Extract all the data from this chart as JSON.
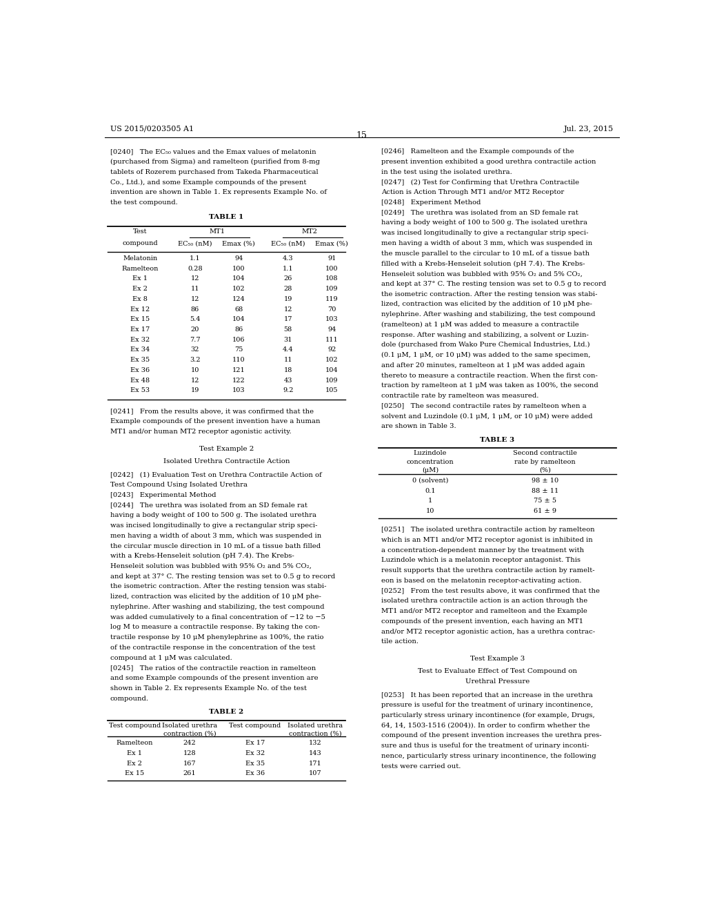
{
  "page_number": "15",
  "patent_number": "US 2015/0203505 A1",
  "patent_date": "Jul. 23, 2015",
  "background_color": "#ffffff",
  "text_color": "#000000",
  "table1_title": "TABLE 1",
  "table1_mt1": "MT1",
  "table1_mt2": "MT2",
  "table1_rows": [
    [
      "Melatonin",
      "1.1",
      "94",
      "4.3",
      "91"
    ],
    [
      "Ramelteon",
      "0.28",
      "100",
      "1.1",
      "100"
    ],
    [
      "Ex 1",
      "12",
      "104",
      "26",
      "108"
    ],
    [
      "Ex 2",
      "11",
      "102",
      "28",
      "109"
    ],
    [
      "Ex 8",
      "12",
      "124",
      "19",
      "119"
    ],
    [
      "Ex 12",
      "86",
      "68",
      "12",
      "70"
    ],
    [
      "Ex 15",
      "5.4",
      "104",
      "17",
      "103"
    ],
    [
      "Ex 17",
      "20",
      "86",
      "58",
      "94"
    ],
    [
      "Ex 32",
      "7.7",
      "106",
      "31",
      "111"
    ],
    [
      "Ex 34",
      "32",
      "75",
      "4.4",
      "92"
    ],
    [
      "Ex 35",
      "3.2",
      "110",
      "11",
      "102"
    ],
    [
      "Ex 36",
      "10",
      "121",
      "18",
      "104"
    ],
    [
      "Ex 48",
      "12",
      "122",
      "43",
      "109"
    ],
    [
      "Ex 53",
      "19",
      "103",
      "9.2",
      "105"
    ]
  ],
  "table2_title": "TABLE 2",
  "table2_rows": [
    [
      "Ramelteon",
      "242",
      "Ex 17",
      "132"
    ],
    [
      "Ex 1",
      "128",
      "Ex 32",
      "143"
    ],
    [
      "Ex 2",
      "167",
      "Ex 35",
      "171"
    ],
    [
      "Ex 15",
      "261",
      "Ex 36",
      "107"
    ]
  ],
  "table3_title": "TABLE 3",
  "table3_rows": [
    [
      "0 (solvent)",
      "98 ± 10"
    ],
    [
      "0.1",
      "88 ± 11"
    ],
    [
      "1",
      "75 ± 5"
    ],
    [
      "10",
      "61 ± 9"
    ]
  ],
  "test_example2_title": "Test Example 2",
  "test_example2_subtitle": "Isolated Urethra Contractile Action",
  "test_example3_title": "Test Example 3",
  "test_example3_subtitle1": "Test to Evaluate Effect of Test Compound on",
  "test_example3_subtitle2": "Urethral Pressure"
}
